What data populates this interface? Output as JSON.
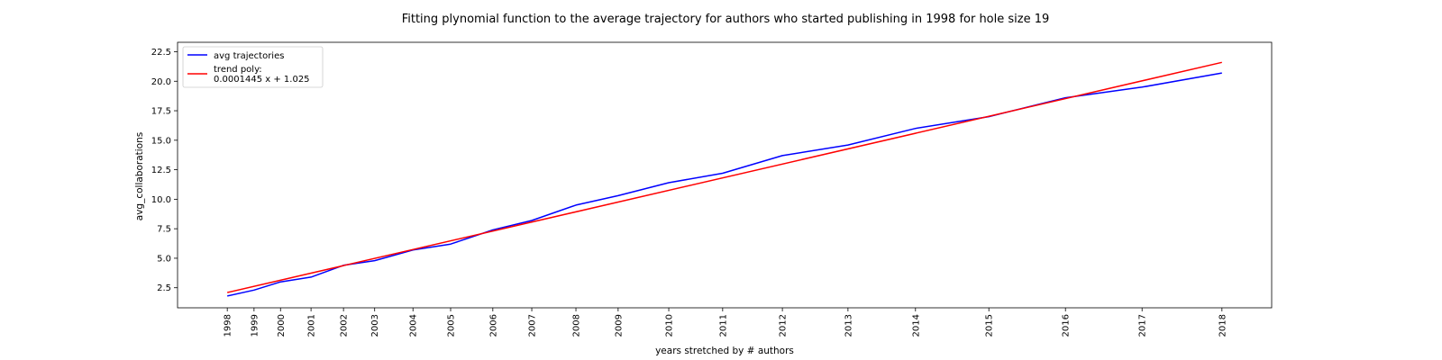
{
  "chart_data": {
    "type": "line",
    "title": "Fitting plynomial function to the average trajectory for authors who started publishing in 1998 for hole size 19",
    "xlabel": "years stretched by # authors",
    "ylabel": "avg_collaborations",
    "xticks": [
      {
        "label": "1998",
        "x": 0
      },
      {
        "label": "1999",
        "x": 4120
      },
      {
        "label": "2000",
        "x": 8200
      },
      {
        "label": "2001",
        "x": 12900
      },
      {
        "label": "2002",
        "x": 17900
      },
      {
        "label": "2003",
        "x": 22700
      },
      {
        "label": "2004",
        "x": 28600
      },
      {
        "label": "2005",
        "x": 34400
      },
      {
        "label": "2006",
        "x": 40900
      },
      {
        "label": "2007",
        "x": 46900
      },
      {
        "label": "2008",
        "x": 53700
      },
      {
        "label": "2009",
        "x": 60200
      },
      {
        "label": "2010",
        "x": 68000
      },
      {
        "label": "2011",
        "x": 76300
      },
      {
        "label": "2012",
        "x": 85500
      },
      {
        "label": "2013",
        "x": 95600
      },
      {
        "label": "2014",
        "x": 106000
      },
      {
        "label": "2015",
        "x": 117300
      },
      {
        "label": "2016",
        "x": 129100
      },
      {
        "label": "2017",
        "x": 140900
      },
      {
        "label": "2018",
        "x": 153200
      }
    ],
    "yticks": [
      "2.5",
      "5.0",
      "7.5",
      "10.0",
      "12.5",
      "15.0",
      "17.5",
      "20.0",
      "22.5"
    ],
    "ylim": [
      0.8,
      23.3
    ],
    "xlim": [
      -7660,
      160860
    ],
    "series": [
      {
        "name": "avg trajectories",
        "color": "#0000ff",
        "x": [
          0,
          4120,
          8200,
          12900,
          17900,
          22700,
          28600,
          34400,
          40900,
          46900,
          53700,
          60200,
          68000,
          76300,
          85500,
          95600,
          106000,
          117300,
          129100,
          140900,
          153200
        ],
        "y": [
          1.8,
          2.3,
          3.0,
          3.4,
          4.4,
          4.8,
          5.7,
          6.2,
          7.4,
          8.2,
          9.5,
          10.3,
          11.4,
          12.2,
          13.7,
          14.6,
          16.0,
          17.0,
          18.6,
          19.5,
          20.7
        ]
      },
      {
        "name": "trend poly:\n0.0001445 x + 1.025",
        "color": "#ff0000",
        "x": [
          0,
          153200
        ],
        "y": [
          2.1,
          21.6
        ]
      }
    ],
    "legend": {
      "position": "top-left",
      "entries": [
        {
          "lines": [
            "avg trajectories"
          ],
          "color": "#0000ff"
        },
        {
          "lines": [
            "trend poly:",
            "0.0001445 x + 1.025"
          ],
          "color": "#ff0000"
        }
      ]
    },
    "grid": false
  }
}
